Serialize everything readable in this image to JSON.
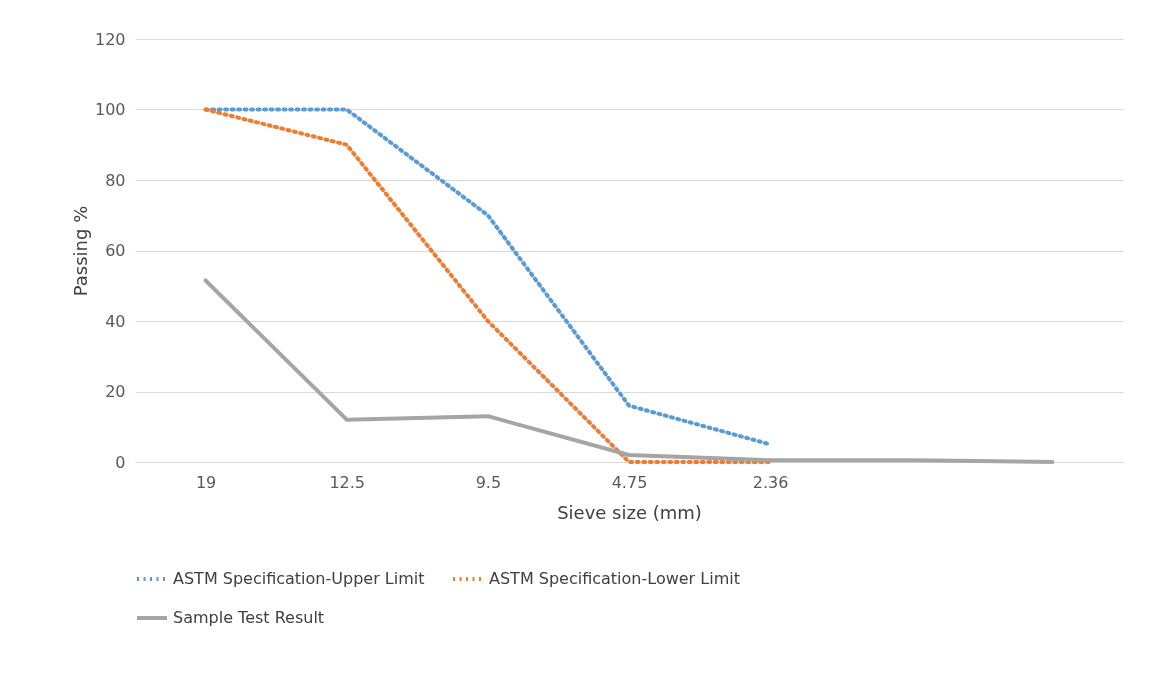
{
  "chart_data": {
    "type": "line",
    "xlabel": "Sieve size (mm)",
    "ylabel": "Passing %",
    "categories": [
      "19",
      "12.5",
      "9.5",
      "4.75",
      "2.36",
      null,
      null
    ],
    "ylim": [
      0,
      120
    ],
    "yticks": [
      0,
      20,
      40,
      60,
      80,
      100,
      120
    ],
    "grid": "y",
    "legend": "bottom",
    "marker": "none",
    "series": [
      {
        "name": "ASTM Specification-Upper Limit",
        "color": "#5b9bd5",
        "line_style": "dotted",
        "values": [
          100,
          100,
          70,
          16,
          5,
          null,
          null
        ]
      },
      {
        "name": "ASTM Specification-Lower Limit",
        "color": "#ed7d31",
        "line_style": "dotted",
        "values": [
          100,
          90,
          40,
          0,
          0,
          null,
          null
        ]
      },
      {
        "name": "Sample Test Result",
        "color": "#a5a5a5",
        "line_style": "solid",
        "values": [
          51.5,
          12,
          13,
          2,
          0.5,
          0.5,
          0
        ]
      }
    ]
  }
}
